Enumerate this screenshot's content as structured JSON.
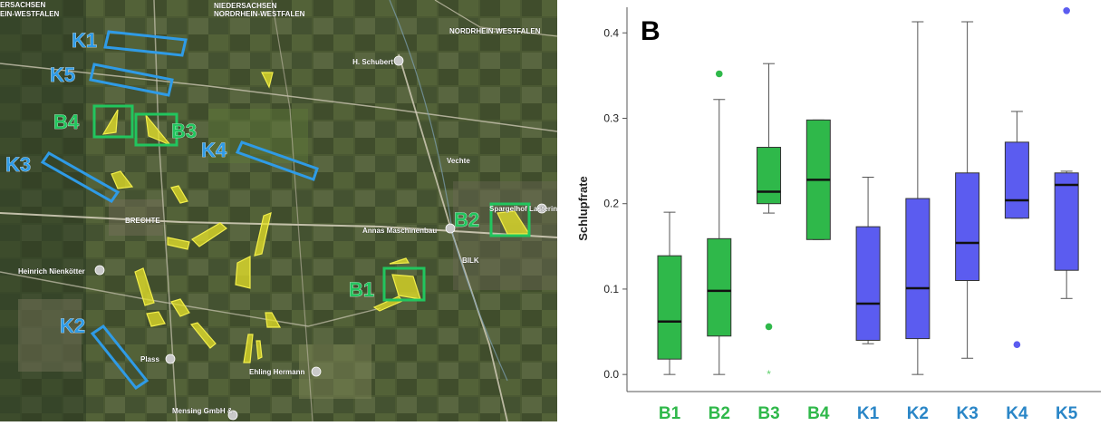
{
  "map": {
    "labels": [
      {
        "text": "NIEDERSACHSEN"
      },
      {
        "text": "NORDRHEIN-WESTFALEN"
      },
      {
        "text": "NORDRHEIN-WESTFALEN"
      },
      {
        "text": "ERSACHSEN"
      },
      {
        "text": "EIN-WESTFALEN"
      },
      {
        "text": "H. Schubert"
      },
      {
        "text": "BRECHTE"
      },
      {
        "text": "Annas Maschinenbau"
      },
      {
        "text": "BILK"
      },
      {
        "text": "Heinrich Nienkötter"
      },
      {
        "text": "Plass"
      },
      {
        "text": "Ehling Hermann"
      },
      {
        "text": "Mensing GmbH &"
      },
      {
        "text": "Spargelhof Lastering"
      },
      {
        "text": "Vechte"
      }
    ],
    "site_labels": [
      {
        "text": "K1",
        "color": "#2f9be6"
      },
      {
        "text": "K5",
        "color": "#2f9be6"
      },
      {
        "text": "K3",
        "color": "#2f9be6"
      },
      {
        "text": "K4",
        "color": "#2f9be6"
      },
      {
        "text": "K2",
        "color": "#2f9be6"
      },
      {
        "text": "B4",
        "color": "#22c55e"
      },
      {
        "text": "B3",
        "color": "#22c55e"
      },
      {
        "text": "B2",
        "color": "#22c55e"
      },
      {
        "text": "B1",
        "color": "#22c55e"
      }
    ]
  },
  "chart_data": {
    "type": "box",
    "panel_label": "B",
    "ylabel": "Schlupfrate",
    "ylim": [
      -0.02,
      0.43
    ],
    "yticks": [
      0.0,
      0.1,
      0.2,
      0.3,
      0.4
    ],
    "ytick_labels": [
      "0.0",
      "0.1",
      "0.2",
      "0.3",
      "0.4"
    ],
    "colors": {
      "B": "#2fb84a",
      "K": "#5b5cf0",
      "B_label": "#2fb84a",
      "K_label": "#2a86c7"
    },
    "categories": [
      "B1",
      "B2",
      "B3",
      "B4",
      "K1",
      "K2",
      "K3",
      "K4",
      "K5"
    ],
    "boxes": [
      {
        "group": "B",
        "whisker_low": 0.0,
        "q1": 0.018,
        "median": 0.062,
        "q3": 0.139,
        "whisker_high": 0.19,
        "outliers": [],
        "extremes": []
      },
      {
        "group": "B",
        "whisker_low": 0.0,
        "q1": 0.045,
        "median": 0.098,
        "q3": 0.159,
        "whisker_high": 0.322,
        "outliers": [
          0.352
        ],
        "extremes": []
      },
      {
        "group": "B",
        "whisker_low": 0.189,
        "q1": 0.2,
        "median": 0.214,
        "q3": 0.266,
        "whisker_high": 0.364,
        "outliers": [
          0.056
        ],
        "extremes": [
          0.0
        ]
      },
      {
        "group": "B",
        "whisker_low": 0.158,
        "q1": 0.158,
        "median": 0.228,
        "q3": 0.298,
        "whisker_high": 0.298,
        "outliers": [],
        "extremes": []
      },
      {
        "group": "K",
        "whisker_low": 0.036,
        "q1": 0.04,
        "median": 0.083,
        "q3": 0.173,
        "whisker_high": 0.231,
        "outliers": [],
        "extremes": []
      },
      {
        "group": "K",
        "whisker_low": 0.0,
        "q1": 0.042,
        "median": 0.101,
        "q3": 0.206,
        "whisker_high": 0.413,
        "outliers": [],
        "extremes": []
      },
      {
        "group": "K",
        "whisker_low": 0.019,
        "q1": 0.11,
        "median": 0.154,
        "q3": 0.236,
        "whisker_high": 0.413,
        "outliers": [],
        "extremes": []
      },
      {
        "group": "K",
        "whisker_low": 0.183,
        "q1": 0.183,
        "median": 0.204,
        "q3": 0.272,
        "whisker_high": 0.308,
        "outliers": [
          0.035
        ],
        "extremes": []
      },
      {
        "group": "K",
        "whisker_low": 0.089,
        "q1": 0.122,
        "median": 0.222,
        "q3": 0.236,
        "whisker_high": 0.238,
        "outliers": [
          0.426
        ],
        "extremes": []
      }
    ]
  }
}
